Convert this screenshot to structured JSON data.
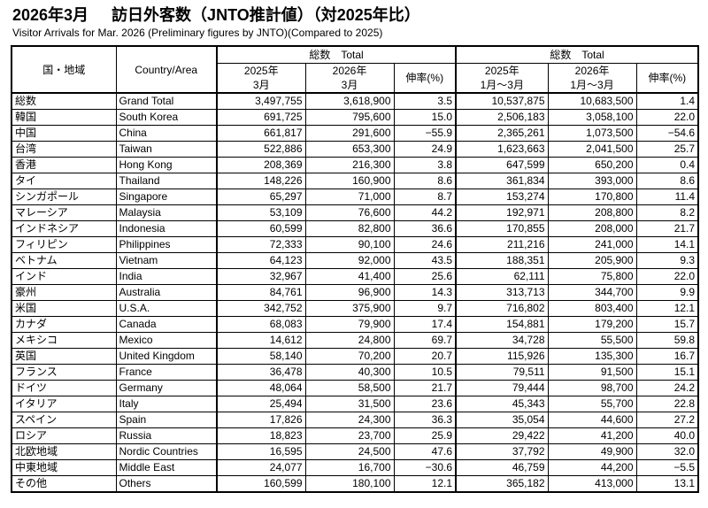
{
  "title": {
    "date": "2026年3月",
    "main": "訪日外客数（JNTO推計値）（対2025年比）",
    "subtitle": "Visitor Arrivals for Mar. 2026 (Preliminary figures by JNTO)(Compared to 2025)"
  },
  "table": {
    "headers": {
      "country_jp": "国・地域",
      "country_en": "Country/Area",
      "group1": "総数　Total",
      "group2": "総数　Total",
      "growth": "伸率(%)",
      "cols": [
        {
          "l1": "2025年",
          "l2": "3月"
        },
        {
          "l1": "2026年",
          "l2": "3月"
        },
        {
          "l1": "2025年",
          "l2": "1月～3月"
        },
        {
          "l1": "2026年",
          "l2": "1月～3月"
        }
      ]
    },
    "rows": [
      {
        "jp": "総数",
        "en": "Grand Total",
        "m25": "3,497,755",
        "m26": "3,618,900",
        "g1": "3.5",
        "q25": "10,537,875",
        "q26": "10,683,500",
        "g2": "1.4"
      },
      {
        "jp": "韓国",
        "en": "South Korea",
        "m25": "691,725",
        "m26": "795,600",
        "g1": "15.0",
        "q25": "2,506,183",
        "q26": "3,058,100",
        "g2": "22.0"
      },
      {
        "jp": "中国",
        "en": "China",
        "m25": "661,817",
        "m26": "291,600",
        "g1": "−55.9",
        "q25": "2,365,261",
        "q26": "1,073,500",
        "g2": "−54.6"
      },
      {
        "jp": "台湾",
        "en": "Taiwan",
        "m25": "522,886",
        "m26": "653,300",
        "g1": "24.9",
        "q25": "1,623,663",
        "q26": "2,041,500",
        "g2": "25.7"
      },
      {
        "jp": "香港",
        "en": "Hong Kong",
        "m25": "208,369",
        "m26": "216,300",
        "g1": "3.8",
        "q25": "647,599",
        "q26": "650,200",
        "g2": "0.4"
      },
      {
        "jp": "タイ",
        "en": "Thailand",
        "m25": "148,226",
        "m26": "160,900",
        "g1": "8.6",
        "q25": "361,834",
        "q26": "393,000",
        "g2": "8.6"
      },
      {
        "jp": "シンガポール",
        "en": "Singapore",
        "m25": "65,297",
        "m26": "71,000",
        "g1": "8.7",
        "q25": "153,274",
        "q26": "170,800",
        "g2": "11.4"
      },
      {
        "jp": "マレーシア",
        "en": "Malaysia",
        "m25": "53,109",
        "m26": "76,600",
        "g1": "44.2",
        "q25": "192,971",
        "q26": "208,800",
        "g2": "8.2"
      },
      {
        "jp": "インドネシア",
        "en": "Indonesia",
        "m25": "60,599",
        "m26": "82,800",
        "g1": "36.6",
        "q25": "170,855",
        "q26": "208,000",
        "g2": "21.7"
      },
      {
        "jp": "フィリピン",
        "en": "Philippines",
        "m25": "72,333",
        "m26": "90,100",
        "g1": "24.6",
        "q25": "211,216",
        "q26": "241,000",
        "g2": "14.1"
      },
      {
        "jp": "ベトナム",
        "en": "Vietnam",
        "m25": "64,123",
        "m26": "92,000",
        "g1": "43.5",
        "q25": "188,351",
        "q26": "205,900",
        "g2": "9.3"
      },
      {
        "jp": "インド",
        "en": "India",
        "m25": "32,967",
        "m26": "41,400",
        "g1": "25.6",
        "q25": "62,111",
        "q26": "75,800",
        "g2": "22.0"
      },
      {
        "jp": "豪州",
        "en": "Australia",
        "m25": "84,761",
        "m26": "96,900",
        "g1": "14.3",
        "q25": "313,713",
        "q26": "344,700",
        "g2": "9.9"
      },
      {
        "jp": "米国",
        "en": "U.S.A.",
        "m25": "342,752",
        "m26": "375,900",
        "g1": "9.7",
        "q25": "716,802",
        "q26": "803,400",
        "g2": "12.1"
      },
      {
        "jp": "カナダ",
        "en": "Canada",
        "m25": "68,083",
        "m26": "79,900",
        "g1": "17.4",
        "q25": "154,881",
        "q26": "179,200",
        "g2": "15.7"
      },
      {
        "jp": "メキシコ",
        "en": "Mexico",
        "m25": "14,612",
        "m26": "24,800",
        "g1": "69.7",
        "q25": "34,728",
        "q26": "55,500",
        "g2": "59.8"
      },
      {
        "jp": "英国",
        "en": "United Kingdom",
        "m25": "58,140",
        "m26": "70,200",
        "g1": "20.7",
        "q25": "115,926",
        "q26": "135,300",
        "g2": "16.7"
      },
      {
        "jp": "フランス",
        "en": "France",
        "m25": "36,478",
        "m26": "40,300",
        "g1": "10.5",
        "q25": "79,511",
        "q26": "91,500",
        "g2": "15.1"
      },
      {
        "jp": "ドイツ",
        "en": "Germany",
        "m25": "48,064",
        "m26": "58,500",
        "g1": "21.7",
        "q25": "79,444",
        "q26": "98,700",
        "g2": "24.2"
      },
      {
        "jp": "イタリア",
        "en": "Italy",
        "m25": "25,494",
        "m26": "31,500",
        "g1": "23.6",
        "q25": "45,343",
        "q26": "55,700",
        "g2": "22.8"
      },
      {
        "jp": "スペイン",
        "en": "Spain",
        "m25": "17,826",
        "m26": "24,300",
        "g1": "36.3",
        "q25": "35,054",
        "q26": "44,600",
        "g2": "27.2"
      },
      {
        "jp": "ロシア",
        "en": "Russia",
        "m25": "18,823",
        "m26": "23,700",
        "g1": "25.9",
        "q25": "29,422",
        "q26": "41,200",
        "g2": "40.0"
      },
      {
        "jp": "北欧地域",
        "en": "Nordic Countries",
        "m25": "16,595",
        "m26": "24,500",
        "g1": "47.6",
        "q25": "37,792",
        "q26": "49,900",
        "g2": "32.0"
      },
      {
        "jp": "中東地域",
        "en": "Middle East",
        "m25": "24,077",
        "m26": "16,700",
        "g1": "−30.6",
        "q25": "46,759",
        "q26": "44,200",
        "g2": "−5.5"
      },
      {
        "jp": "その他",
        "en": "Others",
        "m25": "160,599",
        "m26": "180,100",
        "g1": "12.1",
        "q25": "365,182",
        "q26": "413,000",
        "g2": "13.1"
      }
    ]
  }
}
